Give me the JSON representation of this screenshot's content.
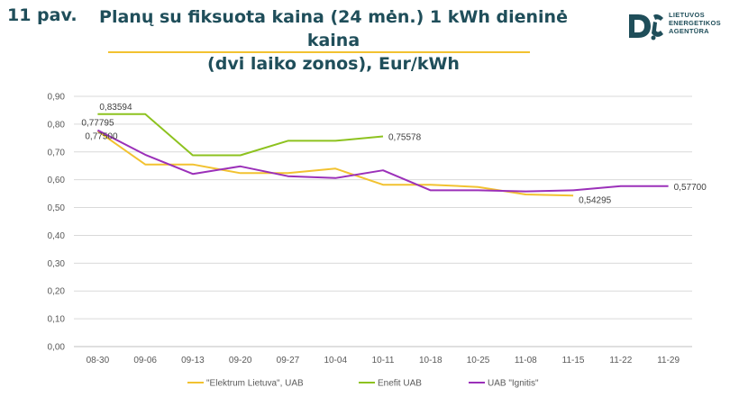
{
  "figure_label": "11 pav.",
  "title_line1": "Planų su fiksuota kaina (24 mėn.) 1 kWh dieninė kaina",
  "title_line2": "(dvi laiko zonos), Eur/kWh",
  "logo": {
    "line1": "LIETUVOS",
    "line2": "ENERGETIKOS",
    "line3": "AGENTŪRA",
    "color": "#1f4e5a"
  },
  "chart_data": {
    "type": "line",
    "categories": [
      "08-30",
      "09-06",
      "09-13",
      "09-20",
      "09-27",
      "10-04",
      "10-11",
      "10-18",
      "10-25",
      "11-08",
      "11-15",
      "11-22",
      "11-29"
    ],
    "ylim": [
      0,
      0.9
    ],
    "yticks": [
      "0,00",
      "0,10",
      "0,20",
      "0,30",
      "0,40",
      "0,50",
      "0,60",
      "0,70",
      "0,80",
      "0,90"
    ],
    "grid": true,
    "legend": "bottom",
    "series": [
      {
        "name": "\"Elektrum Lietuva\", UAB",
        "color": "#f2c230",
        "values": [
          0.775,
          0.655,
          0.655,
          0.624,
          0.624,
          0.64,
          0.582,
          0.582,
          0.574,
          0.547,
          0.54295,
          null,
          null
        ]
      },
      {
        "name": "Enefit UAB",
        "color": "#8dc21f",
        "values": [
          0.83594,
          0.83594,
          0.688,
          0.688,
          0.74,
          0.74,
          0.75578,
          null,
          null,
          null,
          null,
          null,
          null
        ]
      },
      {
        "name": "UAB \"Ignitis\"",
        "color": "#9b30b9",
        "values": [
          0.77795,
          0.69,
          0.621,
          0.648,
          0.613,
          0.606,
          0.634,
          0.562,
          0.562,
          0.558,
          0.562,
          0.577,
          0.577
        ]
      }
    ],
    "annotations": [
      {
        "series": 1,
        "index": 0,
        "text": "0,83594",
        "pos": "above"
      },
      {
        "series": 2,
        "index": 0,
        "text": "0,77795",
        "pos": "left-above"
      },
      {
        "series": 0,
        "index": 0,
        "text": "0,77500",
        "pos": "left-below"
      },
      {
        "series": 1,
        "index": 6,
        "text": "0,75578",
        "pos": "right"
      },
      {
        "series": 0,
        "index": 10,
        "text": "0,54295",
        "pos": "right-below"
      },
      {
        "series": 2,
        "index": 12,
        "text": "0,57700",
        "pos": "right"
      }
    ]
  }
}
